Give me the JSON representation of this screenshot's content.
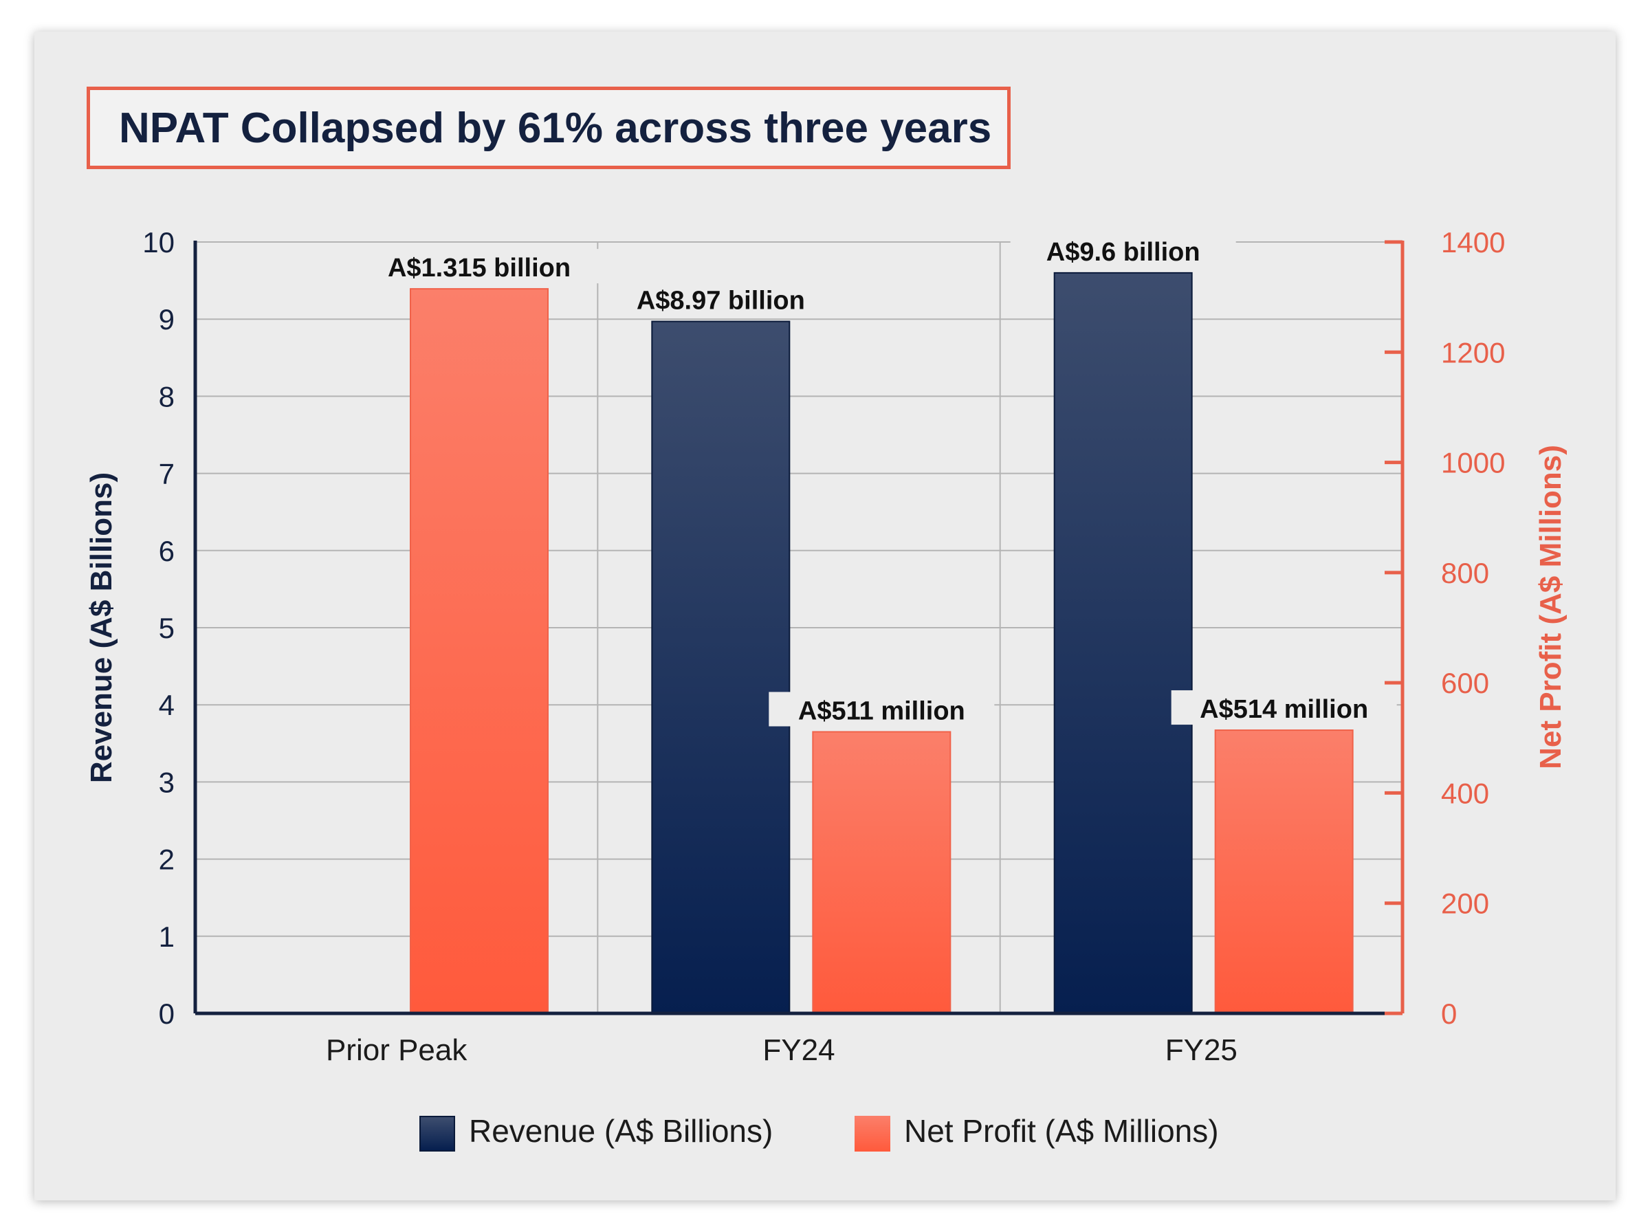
{
  "title": "NPAT Collapsed by 61% across three years",
  "colors": {
    "revenue": "#0e2452",
    "profit": "#ff6347",
    "left_axis": "#14213f",
    "right_axis": "#e8604a"
  },
  "chart_data": {
    "type": "bar",
    "categories": [
      "Prior Peak",
      "FY24",
      "FY25"
    ],
    "y_left": {
      "label": "Revenue (A$ Billions)",
      "range": [
        0,
        10
      ],
      "ticks": [
        "0",
        "1",
        "2",
        "3",
        "4",
        "5",
        "6",
        "7",
        "8",
        "9",
        "10"
      ]
    },
    "y_right": {
      "label": "Net Profit (A$ Millions)",
      "range": [
        0,
        1400
      ],
      "ticks": [
        "0",
        "200",
        "400",
        "600",
        "800",
        "1000",
        "1200",
        "1400"
      ]
    },
    "series": [
      {
        "name": "Revenue (A$ Billions)",
        "axis": "left",
        "values": [
          null,
          8.97,
          9.6
        ],
        "labels": [
          "",
          "A$8.97 billion",
          "A$9.6 billion"
        ]
      },
      {
        "name": "Net Profit (A$ Millions)",
        "axis": "right",
        "values": [
          1315,
          511,
          514
        ],
        "labels": [
          "A$1.315 billion",
          "A$511 million",
          "A$514 million"
        ]
      }
    ],
    "grid": true,
    "legend": "bottom"
  }
}
